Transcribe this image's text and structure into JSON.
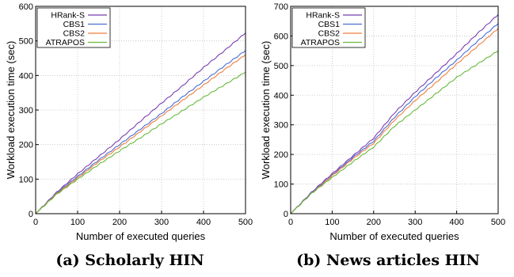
{
  "colors": {
    "hrank": "#7b3fb0",
    "cbs1": "#4a6ed8",
    "cbs2": "#f07f3c",
    "atrapos": "#69b93c",
    "grid": "#c0c0c0"
  },
  "chart_data": [
    {
      "type": "line",
      "caption": "(a) Scholarly HIN",
      "xlabel": "Number of executed queries",
      "ylabel": "Workload execution time (sec)",
      "xlim": [
        0,
        500
      ],
      "ylim": [
        0,
        600
      ],
      "xticks": [
        0,
        100,
        200,
        300,
        400,
        500
      ],
      "yticks": [
        0,
        100,
        200,
        300,
        400,
        500,
        600
      ],
      "grid": true,
      "legend_position": "top-left",
      "x": [
        0,
        50,
        100,
        150,
        200,
        250,
        300,
        350,
        400,
        450,
        500
      ],
      "series": [
        {
          "name": "HRank-S",
          "values": [
            0,
            62,
            115,
            165,
            215,
            268,
            320,
            370,
            423,
            472,
            523
          ]
        },
        {
          "name": "CBS1",
          "values": [
            0,
            60,
            108,
            155,
            200,
            245,
            290,
            338,
            383,
            428,
            472
          ]
        },
        {
          "name": "CBS2",
          "values": [
            0,
            58,
            104,
            150,
            193,
            238,
            283,
            328,
            372,
            417,
            460
          ]
        },
        {
          "name": "ATRAPOS",
          "values": [
            0,
            56,
            100,
            142,
            182,
            220,
            260,
            298,
            337,
            373,
            410
          ]
        }
      ]
    },
    {
      "type": "line",
      "caption": "(b) News articles HIN",
      "xlabel": "Number of executed queries",
      "ylabel": "Workload execution time (sec)",
      "xlim": [
        0,
        500
      ],
      "ylim": [
        0,
        700
      ],
      "xticks": [
        0,
        100,
        200,
        300,
        400,
        500
      ],
      "yticks": [
        0,
        100,
        200,
        300,
        400,
        500,
        600,
        700
      ],
      "grid": true,
      "legend_position": "top-left",
      "x": [
        0,
        50,
        100,
        150,
        200,
        250,
        300,
        350,
        400,
        450,
        500
      ],
      "series": [
        {
          "name": "HRank-S",
          "values": [
            0,
            72,
            135,
            195,
            255,
            340,
            410,
            475,
            540,
            608,
            672
          ]
        },
        {
          "name": "CBS1",
          "values": [
            0,
            70,
            130,
            190,
            245,
            325,
            395,
            458,
            518,
            582,
            642
          ]
        },
        {
          "name": "CBS2",
          "values": [
            0,
            68,
            128,
            185,
            238,
            315,
            382,
            442,
            505,
            565,
            625
          ]
        },
        {
          "name": "ATRAPOS",
          "values": [
            0,
            68,
            122,
            175,
            225,
            295,
            350,
            405,
            460,
            505,
            550
          ]
        }
      ]
    }
  ]
}
